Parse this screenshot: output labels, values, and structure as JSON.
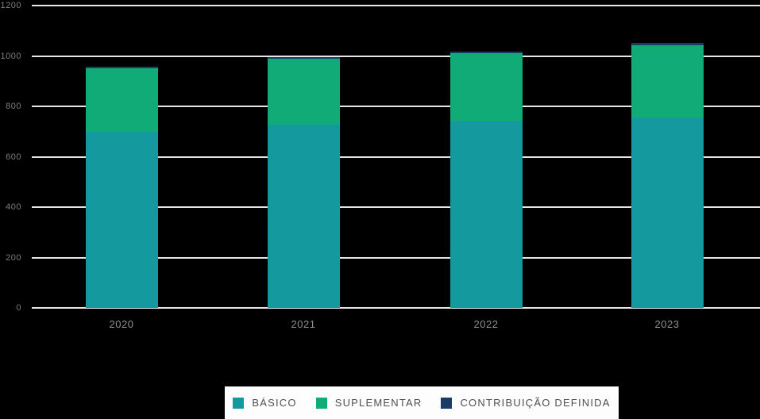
{
  "chart_data": {
    "type": "bar",
    "stacked": true,
    "title": "",
    "xlabel": "",
    "ylabel": "",
    "categories": [
      "2020",
      "2021",
      "2022",
      "2023"
    ],
    "series": [
      {
        "name": "BÁSICO",
        "color": "#149a9e",
        "values": [
          700,
          728,
          740,
          756
        ]
      },
      {
        "name": "SUPLEMENTAR",
        "color": "#10ab77",
        "values": [
          251,
          261,
          272,
          288
        ]
      },
      {
        "name": "CONTRIBUIÇÃO DEFINIDA",
        "color": "#1b3a66",
        "values": [
          6,
          6,
          6,
          7
        ]
      }
    ],
    "ylim": [
      0,
      1200
    ],
    "yticks": [
      0,
      200,
      400,
      600,
      800,
      1000,
      1200
    ],
    "grid": true,
    "legend_position": "bottom"
  },
  "colors": {
    "background": "#000000",
    "gridline": "#e6e6e6",
    "y_axis_text": "#7d7d7d",
    "x_axis_text": "#8f8f8f",
    "legend_background": "#fdfdfd",
    "legend_text": "#4f4f4f"
  }
}
